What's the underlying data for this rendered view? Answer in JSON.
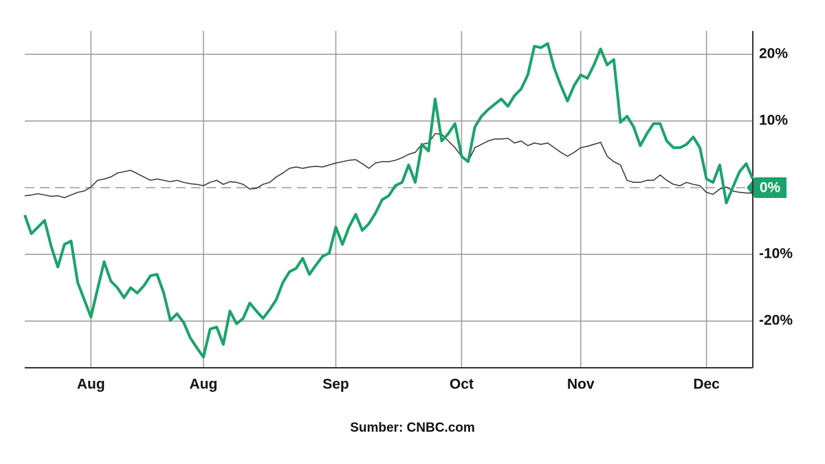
{
  "chart_data": {
    "type": "line",
    "note": "Sumber: CNBC.com",
    "categories": [
      null,
      null,
      null,
      null,
      null,
      null,
      null,
      null,
      null,
      null,
      "Aug",
      null,
      null,
      null,
      null,
      null,
      null,
      null,
      null,
      null,
      null,
      null,
      null,
      null,
      null,
      null,
      null,
      "Aug",
      null,
      null,
      null,
      null,
      null,
      null,
      null,
      null,
      null,
      null,
      null,
      null,
      null,
      null,
      null,
      null,
      null,
      null,
      null,
      "Sep",
      null,
      null,
      null,
      null,
      null,
      null,
      null,
      null,
      null,
      null,
      null,
      null,
      null,
      null,
      null,
      null,
      null,
      null,
      "Oct",
      null,
      null,
      null,
      null,
      null,
      null,
      null,
      null,
      null,
      null,
      null,
      null,
      null,
      null,
      null,
      null,
      null,
      "Nov",
      null,
      null,
      null,
      null,
      null,
      null,
      null,
      null,
      null,
      null,
      null,
      null,
      null,
      null,
      null,
      null,
      null,
      null,
      "Dec",
      null,
      null,
      null,
      null,
      null,
      null,
      null
    ],
    "series": [
      {
        "color": "#1aa36a",
        "values": [
          -4.1,
          -6.9,
          -5.9,
          -4.9,
          -8.8,
          -11.9,
          -8.5,
          -8.0,
          -14.2,
          -16.8,
          -19.4,
          -15.2,
          -11.1,
          -14.0,
          -15.0,
          -16.5,
          -15.0,
          -15.8,
          -14.7,
          -13.2,
          -13.0,
          -15.8,
          -19.9,
          -18.9,
          -20.2,
          -22.5,
          -24.0,
          -25.4,
          -21.2,
          -20.9,
          -23.5,
          -18.5,
          -20.4,
          -19.6,
          -17.3,
          -18.5,
          -19.6,
          -18.3,
          -16.8,
          -14.2,
          -12.6,
          -12.1,
          -10.6,
          -13.0,
          -11.6,
          -10.3,
          -9.8,
          -5.9,
          -8.5,
          -5.9,
          -4.0,
          -6.4,
          -5.4,
          -3.8,
          -1.8,
          -1.2,
          0.3,
          0.8,
          3.4,
          0.8,
          6.5,
          5.5,
          13.3,
          7.0,
          8.1,
          9.6,
          4.7,
          3.9,
          9.1,
          10.7,
          11.7,
          12.5,
          13.3,
          12.2,
          13.8,
          14.8,
          16.9,
          21.2,
          21.0,
          21.6,
          17.9,
          15.3,
          13.0,
          15.3,
          16.9,
          16.4,
          18.4,
          20.8,
          18.4,
          19.2,
          9.8,
          10.7,
          9.1,
          6.3,
          8.1,
          9.6,
          9.6,
          7.0,
          6.0,
          6.0,
          6.5,
          7.6,
          6.0,
          1.3,
          0.8,
          3.4,
          -2.3,
          0.1,
          2.4,
          3.6,
          1.3
        ]
      },
      {
        "color": "#333333",
        "values": [
          -1.2,
          -1.1,
          -0.9,
          -1.1,
          -1.3,
          -1.2,
          -1.5,
          -1.1,
          -0.7,
          -0.5,
          0.1,
          1.1,
          1.3,
          1.6,
          2.2,
          2.4,
          2.6,
          2.1,
          1.6,
          1.1,
          1.3,
          1.1,
          0.9,
          1.1,
          0.8,
          0.6,
          0.5,
          0.3,
          0.8,
          1.1,
          0.5,
          0.9,
          0.8,
          0.5,
          -0.2,
          -0.1,
          0.5,
          0.8,
          1.6,
          2.2,
          2.9,
          3.1,
          2.9,
          3.1,
          3.2,
          3.1,
          3.4,
          3.7,
          3.9,
          4.1,
          4.2,
          3.6,
          2.9,
          3.7,
          3.9,
          3.9,
          4.1,
          4.5,
          5.0,
          5.3,
          6.5,
          6.7,
          8.1,
          8.0,
          7.0,
          6.0,
          4.7,
          3.9,
          6.0,
          6.5,
          7.0,
          7.3,
          7.3,
          7.4,
          6.7,
          7.0,
          6.3,
          6.7,
          6.5,
          6.7,
          6.0,
          5.3,
          4.7,
          5.3,
          6.0,
          6.2,
          6.5,
          6.8,
          4.7,
          3.9,
          3.4,
          1.1,
          0.8,
          0.8,
          1.1,
          1.1,
          1.9,
          1.1,
          0.5,
          0.3,
          0.8,
          0.5,
          0.3,
          -0.7,
          -1.0,
          -0.2,
          0.1,
          -0.5,
          -0.7,
          -0.8,
          -0.8
        ]
      }
    ],
    "ylim": [
      -27,
      23.5
    ],
    "yticks": [
      {
        "value": -20,
        "label": "-20%"
      },
      {
        "value": -10,
        "label": "-10%"
      },
      {
        "value": 0,
        "label": "0%"
      },
      {
        "value": 10,
        "label": "10%"
      },
      {
        "value": 20,
        "label": "20%"
      }
    ],
    "grid": true
  }
}
